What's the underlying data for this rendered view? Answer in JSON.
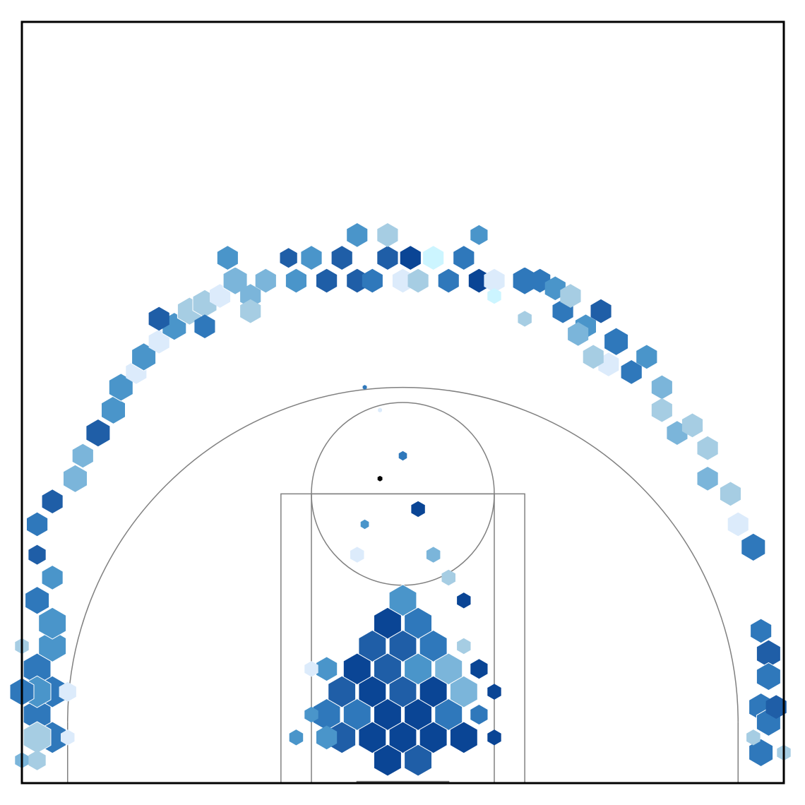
{
  "chart_data": {
    "type": "hexbin",
    "title": "",
    "xlabel": "",
    "ylabel": "",
    "grid": false,
    "legend": "none",
    "x_range_ft": [
      -25,
      25
    ],
    "y_range_ft": [
      -4,
      46
    ],
    "hex_size_ft": 1.0,
    "colormap": [
      "#ccf5ff",
      "#dcebfb",
      "#a6cde3",
      "#7bb5da",
      "#4a95ca",
      "#2f78bb",
      "#1f5ea7",
      "#0a4595"
    ],
    "court": {
      "line_color": "#808080",
      "three_point_radius_ft": 22.0,
      "corner_x_ft": 22.0,
      "hoop": [
        0,
        0
      ],
      "backboard_width_ft": 6,
      "outer_lane_half_width_ft": 8,
      "inner_lane_half_width_ft": 6,
      "free_throw_line_ft": 15.0,
      "free_throw_circle_radius_ft": 6
    },
    "bins": [
      [
        -2.5,
        13.0,
        4,
        1.2
      ],
      [
        -1.5,
        16.0,
        8,
        0.7
      ],
      [
        -1.5,
        20.5,
        1,
        0.6
      ],
      [
        -2.5,
        22.0,
        5,
        0.6
      ],
      [
        0.0,
        17.5,
        5,
        1.2
      ],
      [
        0.0,
        8.0,
        4,
        4
      ],
      [
        1.0,
        6.5,
        5,
        4
      ],
      [
        -1.0,
        6.5,
        7,
        4
      ],
      [
        2.0,
        5.0,
        5,
        4
      ],
      [
        0.0,
        5.0,
        6,
        4
      ],
      [
        -2.0,
        5.0,
        6,
        4
      ],
      [
        -1.0,
        3.5,
        6,
        4
      ],
      [
        1.0,
        3.5,
        4,
        4
      ],
      [
        -3.0,
        3.5,
        7,
        4
      ],
      [
        3.0,
        3.5,
        3,
        4
      ],
      [
        0.0,
        2.0,
        6,
        4
      ],
      [
        -2.0,
        2.0,
        7,
        4
      ],
      [
        2.0,
        2.0,
        7,
        4
      ],
      [
        -4.0,
        2.0,
        6,
        4
      ],
      [
        4.0,
        2.0,
        3,
        4
      ],
      [
        -1.0,
        0.5,
        7,
        4
      ],
      [
        1.0,
        0.5,
        7,
        4
      ],
      [
        -3.0,
        0.5,
        5,
        4
      ],
      [
        3.0,
        0.5,
        5,
        4
      ],
      [
        -5.0,
        0.5,
        5,
        4
      ],
      [
        0.0,
        -1.0,
        7,
        4
      ],
      [
        -2.0,
        -1.0,
        7,
        4
      ],
      [
        2.0,
        -1.0,
        7,
        4
      ],
      [
        -4.0,
        -1.0,
        6,
        4
      ],
      [
        4.0,
        -1.0,
        7,
        4
      ],
      [
        -1.0,
        -2.5,
        7,
        4
      ],
      [
        1.0,
        -2.5,
        6,
        4
      ],
      [
        5.0,
        0.5,
        5,
        2.5
      ],
      [
        -5.0,
        -1.0,
        4,
        3
      ],
      [
        -6.0,
        0.5,
        4,
        2
      ],
      [
        4.0,
        5.0,
        2,
        2
      ],
      [
        5.0,
        3.5,
        7,
        2.5
      ],
      [
        -5.0,
        3.5,
        4,
        3
      ],
      [
        4.0,
        8.0,
        7,
        2
      ],
      [
        2.0,
        11.0,
        3,
        2
      ],
      [
        3.0,
        9.5,
        2,
        2
      ],
      [
        -3.0,
        11.0,
        1,
        2
      ],
      [
        -6.0,
        3.5,
        1,
        2
      ],
      [
        6.0,
        2.0,
        7,
        2
      ],
      [
        -7.0,
        -1.0,
        4,
        2
      ],
      [
        6.0,
        -1.0,
        7,
        2
      ],
      [
        1.0,
        14.0,
        7,
        2
      ],
      [
        -24.0,
        3.5,
        5,
        4
      ],
      [
        -23.0,
        2.0,
        5,
        4
      ],
      [
        -24.0,
        0.5,
        5,
        4
      ],
      [
        -23.0,
        5.0,
        4,
        4
      ],
      [
        -23.0,
        6.5,
        4,
        4
      ],
      [
        -24.0,
        8.0,
        5,
        3.5
      ],
      [
        -23.0,
        9.5,
        4,
        3
      ],
      [
        -23.0,
        -1.0,
        5,
        4
      ],
      [
        -24.0,
        -1.0,
        2,
        4
      ],
      [
        -24.0,
        2.0,
        4,
        4
      ],
      [
        -25.0,
        2.0,
        5,
        3.5
      ],
      [
        -25.0,
        5.0,
        2,
        2
      ],
      [
        -25.0,
        -2.5,
        3,
        2
      ],
      [
        -24.0,
        -2.5,
        2,
        2.5
      ],
      [
        -22.0,
        2.0,
        1,
        2.5
      ],
      [
        -22.0,
        -1.0,
        1,
        2
      ],
      [
        -24.0,
        11.0,
        6,
        2.5
      ],
      [
        -24.0,
        13.0,
        5,
        3
      ],
      [
        -23.0,
        14.5,
        6,
        3
      ],
      [
        -21.5,
        16.0,
        3,
        3.5
      ],
      [
        -21.0,
        17.5,
        3,
        3
      ],
      [
        -20.0,
        19.0,
        6,
        3.5
      ],
      [
        -19.0,
        20.5,
        4,
        3.5
      ],
      [
        -18.5,
        22.0,
        4,
        3.5
      ],
      [
        -17.5,
        23.0,
        1,
        3
      ],
      [
        -17.0,
        24.0,
        4,
        3.5
      ],
      [
        -16.0,
        25.0,
        1,
        3
      ],
      [
        -15.0,
        26.0,
        4,
        3.5
      ],
      [
        -14.0,
        27.0,
        2,
        3.5
      ],
      [
        -13.0,
        27.5,
        2,
        3.5
      ],
      [
        -12.0,
        28.0,
        1,
        3
      ],
      [
        -11.0,
        29.0,
        3,
        3.5
      ],
      [
        -16.0,
        26.5,
        6,
        3
      ],
      [
        -13.0,
        26.0,
        5,
        3
      ],
      [
        -10.0,
        28.0,
        3,
        3
      ],
      [
        -11.5,
        30.5,
        4,
        3
      ],
      [
        -9.0,
        29.0,
        3,
        3
      ],
      [
        -10.0,
        27.0,
        2,
        3
      ],
      [
        -7.0,
        29.0,
        4,
        3
      ],
      [
        -6.0,
        30.5,
        4,
        3
      ],
      [
        -5.0,
        29.0,
        6,
        3
      ],
      [
        -4.0,
        30.5,
        6,
        3
      ],
      [
        -3.0,
        29.0,
        6,
        3
      ],
      [
        -3.0,
        32.0,
        4,
        3
      ],
      [
        -2.0,
        29.0,
        5,
        3
      ],
      [
        -1.0,
        30.5,
        6,
        3
      ],
      [
        -1.0,
        32.0,
        2,
        3
      ],
      [
        0.0,
        29.0,
        1,
        3
      ],
      [
        0.5,
        30.5,
        7,
        3
      ],
      [
        1.0,
        29.0,
        2,
        3
      ],
      [
        2.0,
        30.5,
        0,
        3
      ],
      [
        3.0,
        29.0,
        5,
        3
      ],
      [
        4.0,
        30.5,
        5,
        3
      ],
      [
        5.0,
        29.0,
        7,
        3
      ],
      [
        6.0,
        29.0,
        1,
        3
      ],
      [
        5.0,
        32.0,
        4,
        2.5
      ],
      [
        -7.5,
        30.5,
        6,
        2.5
      ],
      [
        8.0,
        29.0,
        5,
        3.5
      ],
      [
        9.0,
        29.0,
        5,
        3
      ],
      [
        10.0,
        28.5,
        4,
        3
      ],
      [
        10.5,
        27.0,
        5,
        3
      ],
      [
        11.0,
        28.0,
        2,
        3
      ],
      [
        12.0,
        26.0,
        4,
        3
      ],
      [
        13.0,
        27.0,
        6,
        3
      ],
      [
        14.0,
        25.0,
        5,
        3.5
      ],
      [
        13.5,
        23.5,
        1,
        3
      ],
      [
        15.0,
        23.0,
        5,
        3
      ],
      [
        16.0,
        24.0,
        4,
        3
      ],
      [
        17.0,
        22.0,
        3,
        3
      ],
      [
        17.0,
        20.5,
        2,
        3
      ],
      [
        18.0,
        19.0,
        3,
        3
      ],
      [
        19.0,
        19.5,
        2,
        3
      ],
      [
        20.0,
        18.0,
        2,
        3
      ],
      [
        20.0,
        16.0,
        3,
        3
      ],
      [
        21.5,
        15.0,
        2,
        3
      ],
      [
        22.0,
        13.0,
        1,
        3
      ],
      [
        23.0,
        11.5,
        5,
        3.5
      ],
      [
        11.5,
        25.5,
        3,
        3
      ],
      [
        12.5,
        24.0,
        2,
        3
      ],
      [
        8.0,
        26.5,
        2,
        2
      ],
      [
        6.0,
        28.0,
        0,
        2
      ],
      [
        23.5,
        6.0,
        5,
        3
      ],
      [
        24.0,
        4.5,
        6,
        3.5
      ],
      [
        24.0,
        3.0,
        5,
        3.5
      ],
      [
        23.5,
        1.0,
        5,
        3.5
      ],
      [
        24.0,
        0.0,
        5,
        3.5
      ],
      [
        23.5,
        -2.0,
        5,
        3.5
      ],
      [
        24.5,
        1.0,
        6,
        3
      ],
      [
        23.0,
        -1.0,
        2,
        2
      ],
      [
        25.0,
        -2.0,
        2,
        2
      ]
    ]
  }
}
